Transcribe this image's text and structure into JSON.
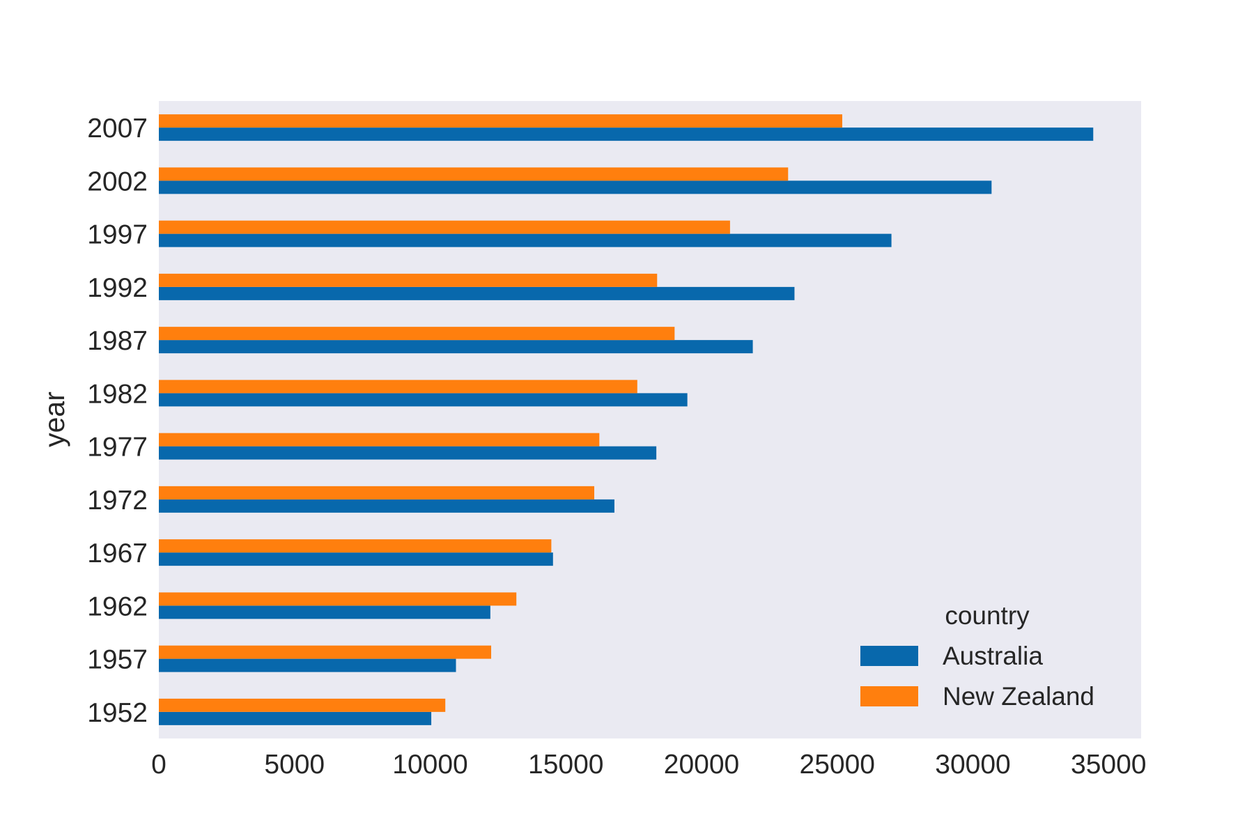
{
  "chart_data": {
    "type": "bar",
    "orientation": "horizontal",
    "ylabel": "year",
    "xlabel": "",
    "categories": [
      "1952",
      "1957",
      "1962",
      "1967",
      "1972",
      "1977",
      "1982",
      "1987",
      "1992",
      "1997",
      "2002",
      "2007"
    ],
    "series": [
      {
        "name": "Australia",
        "color": "#0868ac",
        "values": [
          10040,
          10950,
          12217,
          14526,
          16789,
          18334,
          19477,
          21889,
          23425,
          26998,
          30688,
          34435
        ]
      },
      {
        "name": "New Zealand",
        "color": "#ff7f0e",
        "values": [
          10557,
          12247,
          13176,
          14464,
          16046,
          16234,
          17632,
          19007,
          18363,
          21050,
          23190,
          25185
        ]
      }
    ],
    "xlim": [
      0,
      36200
    ],
    "xticks": [
      "0",
      "5000",
      "10000",
      "15000",
      "20000",
      "25000",
      "30000",
      "35000"
    ],
    "grid": false,
    "legend": {
      "title": "country",
      "placement": "lower-right"
    },
    "background": "#eaeaf2"
  }
}
